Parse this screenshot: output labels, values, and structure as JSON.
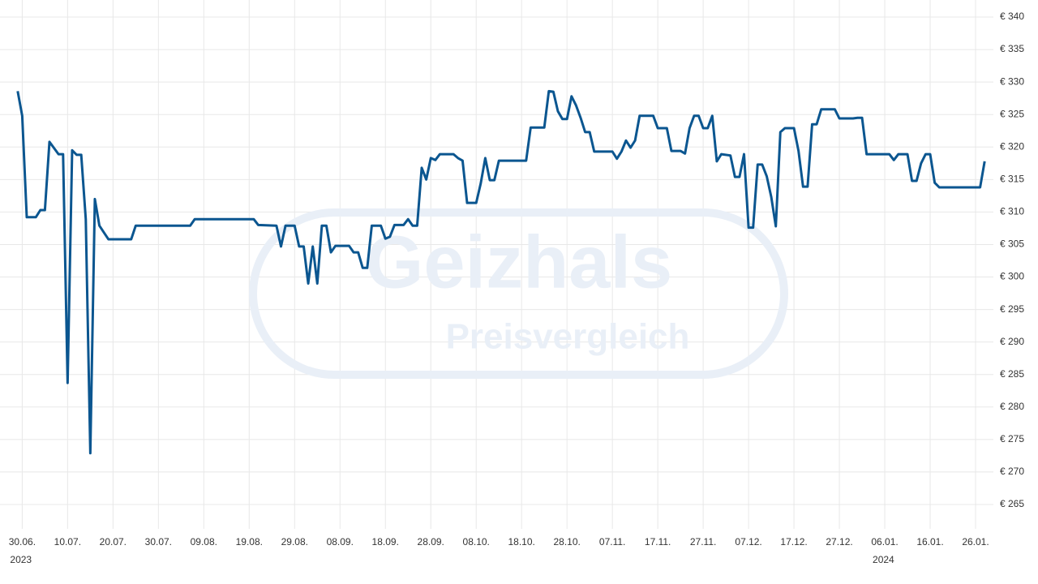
{
  "chart_data": {
    "type": "line",
    "watermark": [
      "Geizhals",
      "Preisvergleich"
    ],
    "x": [
      "2023-06-29",
      "2023-06-30",
      "2023-07-01",
      "2023-07-03",
      "2023-07-04",
      "2023-07-05",
      "2023-07-06",
      "2023-07-08",
      "2023-07-09",
      "2023-07-10",
      "2023-07-11",
      "2023-07-12",
      "2023-07-13",
      "2023-07-14",
      "2023-07-15",
      "2023-07-16",
      "2023-07-17",
      "2023-07-19",
      "2023-07-24",
      "2023-07-25",
      "2023-08-06",
      "2023-08-07",
      "2023-08-20",
      "2023-08-21",
      "2023-08-25",
      "2023-08-26",
      "2023-08-27",
      "2023-08-29",
      "2023-08-30",
      "2023-08-31",
      "2023-09-01",
      "2023-09-02",
      "2023-09-03",
      "2023-09-04",
      "2023-09-05",
      "2023-09-06",
      "2023-09-07",
      "2023-09-10",
      "2023-09-11",
      "2023-09-12",
      "2023-09-13",
      "2023-09-14",
      "2023-09-15",
      "2023-09-17",
      "2023-09-18",
      "2023-09-19",
      "2023-09-20",
      "2023-09-22",
      "2023-09-23",
      "2023-09-24",
      "2023-09-25",
      "2023-09-26",
      "2023-09-27",
      "2023-09-28",
      "2023-09-29",
      "2023-09-30",
      "2023-10-03",
      "2023-10-04",
      "2023-10-05",
      "2023-10-06",
      "2023-10-08",
      "2023-10-09",
      "2023-10-10",
      "2023-10-11",
      "2023-10-12",
      "2023-10-13",
      "2023-10-19",
      "2023-10-20",
      "2023-10-23",
      "2023-10-24",
      "2023-10-25",
      "2023-10-26",
      "2023-10-27",
      "2023-10-28",
      "2023-10-29",
      "2023-10-30",
      "2023-10-31",
      "2023-11-01",
      "2023-11-02",
      "2023-11-03",
      "2023-11-07",
      "2023-11-08",
      "2023-11-09",
      "2023-11-10",
      "2023-11-11",
      "2023-11-12",
      "2023-11-13",
      "2023-11-16",
      "2023-11-17",
      "2023-11-19",
      "2023-11-20",
      "2023-11-22",
      "2023-11-23",
      "2023-11-24",
      "2023-11-25",
      "2023-11-26",
      "2023-11-27",
      "2023-11-28",
      "2023-11-29",
      "2023-11-30",
      "2023-12-01",
      "2023-12-03",
      "2023-12-04",
      "2023-12-05",
      "2023-12-06",
      "2023-12-07",
      "2023-12-08",
      "2023-12-09",
      "2023-12-10",
      "2023-12-11",
      "2023-12-12",
      "2023-12-13",
      "2023-12-14",
      "2023-12-15",
      "2023-12-17",
      "2023-12-18",
      "2023-12-19",
      "2023-12-20",
      "2023-12-21",
      "2023-12-22",
      "2023-12-23",
      "2023-12-26",
      "2023-12-27",
      "2023-12-30",
      "2023-12-31",
      "2024-01-01",
      "2024-01-02",
      "2024-01-07",
      "2024-01-08",
      "2024-01-09",
      "2024-01-11",
      "2024-01-12",
      "2024-01-13",
      "2024-01-14",
      "2024-01-15",
      "2024-01-16",
      "2024-01-17",
      "2024-01-18",
      "2024-01-27",
      "2024-01-28"
    ],
    "series": [
      {
        "color": "#0b5690",
        "values": [
          328.6,
          324.8,
          309.2,
          309.2,
          310.3,
          310.3,
          320.8,
          318.9,
          318.9,
          283.7,
          319.5,
          318.8,
          318.8,
          308.9,
          272.9,
          312.0,
          307.9,
          305.8,
          305.8,
          307.9,
          307.9,
          308.9,
          308.9,
          308.0,
          307.9,
          304.7,
          307.9,
          307.9,
          304.7,
          304.7,
          299.0,
          304.7,
          299.0,
          307.9,
          307.9,
          303.8,
          304.8,
          304.8,
          303.8,
          303.8,
          301.4,
          301.4,
          307.9,
          307.9,
          305.9,
          306.2,
          308.0,
          308.0,
          308.9,
          307.9,
          307.9,
          316.8,
          315.0,
          318.3,
          318.0,
          318.9,
          318.9,
          318.3,
          317.9,
          311.4,
          311.4,
          314.4,
          318.3,
          314.9,
          314.9,
          317.9,
          317.9,
          323.0,
          323.0,
          328.6,
          328.5,
          325.5,
          324.3,
          324.3,
          327.8,
          326.4,
          324.5,
          322.3,
          322.3,
          319.3,
          319.3,
          318.2,
          319.3,
          321.0,
          319.9,
          321.0,
          324.8,
          324.8,
          322.9,
          322.9,
          319.4,
          319.4,
          319.0,
          322.9,
          324.8,
          324.8,
          322.9,
          322.9,
          324.8,
          317.8,
          318.9,
          318.7,
          315.4,
          315.4,
          318.9,
          307.6,
          307.6,
          317.3,
          317.3,
          315.5,
          312.3,
          307.8,
          322.3,
          322.9,
          322.9,
          319.4,
          313.9,
          313.9,
          323.5,
          323.5,
          325.8,
          325.8,
          324.4,
          324.4,
          324.5,
          324.5,
          318.9,
          318.9,
          318.0,
          318.9,
          318.9,
          314.8,
          314.8,
          317.5,
          318.9,
          318.9,
          314.5,
          313.8,
          313.8,
          317.8
        ]
      }
    ],
    "xlim": [
      "2023-06-26",
      "2024-01-31"
    ],
    "xticks": [
      {
        "value": "2023-06-30",
        "label": "30.06."
      },
      {
        "value": "2023-07-10",
        "label": "10.07."
      },
      {
        "value": "2023-07-20",
        "label": "20.07."
      },
      {
        "value": "2023-07-30",
        "label": "30.07."
      },
      {
        "value": "2023-08-09",
        "label": "09.08."
      },
      {
        "value": "2023-08-19",
        "label": "19.08."
      },
      {
        "value": "2023-08-29",
        "label": "29.08."
      },
      {
        "value": "2023-09-08",
        "label": "08.09."
      },
      {
        "value": "2023-09-18",
        "label": "18.09."
      },
      {
        "value": "2023-09-28",
        "label": "28.09."
      },
      {
        "value": "2023-10-08",
        "label": "08.10."
      },
      {
        "value": "2023-10-18",
        "label": "18.10."
      },
      {
        "value": "2023-10-28",
        "label": "28.10."
      },
      {
        "value": "2023-11-07",
        "label": "07.11."
      },
      {
        "value": "2023-11-17",
        "label": "17.11."
      },
      {
        "value": "2023-11-27",
        "label": "27.11."
      },
      {
        "value": "2023-12-07",
        "label": "07.12."
      },
      {
        "value": "2023-12-17",
        "label": "17.12."
      },
      {
        "value": "2023-12-27",
        "label": "27.12."
      },
      {
        "value": "2024-01-06",
        "label": "06.01."
      },
      {
        "value": "2024-01-16",
        "label": "16.01."
      },
      {
        "value": "2024-01-26",
        "label": "26.01."
      }
    ],
    "year_labels": [
      {
        "value": "2023-06-30",
        "label": "2023"
      },
      {
        "value": "2024-01-06",
        "label": "2024"
      }
    ],
    "ylim": [
      265,
      340
    ],
    "yticks": [
      {
        "value": 265,
        "label": "€ 265"
      },
      {
        "value": 270,
        "label": "€ 270"
      },
      {
        "value": 275,
        "label": "€ 275"
      },
      {
        "value": 280,
        "label": "€ 280"
      },
      {
        "value": 285,
        "label": "€ 285"
      },
      {
        "value": 290,
        "label": "€ 290"
      },
      {
        "value": 295,
        "label": "€ 295"
      },
      {
        "value": 300,
        "label": "€ 300"
      },
      {
        "value": 305,
        "label": "€ 305"
      },
      {
        "value": 310,
        "label": "€ 310"
      },
      {
        "value": 315,
        "label": "€ 315"
      },
      {
        "value": 320,
        "label": "€ 320"
      },
      {
        "value": 325,
        "label": "€ 325"
      },
      {
        "value": 330,
        "label": "€ 330"
      },
      {
        "value": 335,
        "label": "€ 335"
      },
      {
        "value": 340,
        "label": "€ 340"
      }
    ],
    "grid": true
  }
}
